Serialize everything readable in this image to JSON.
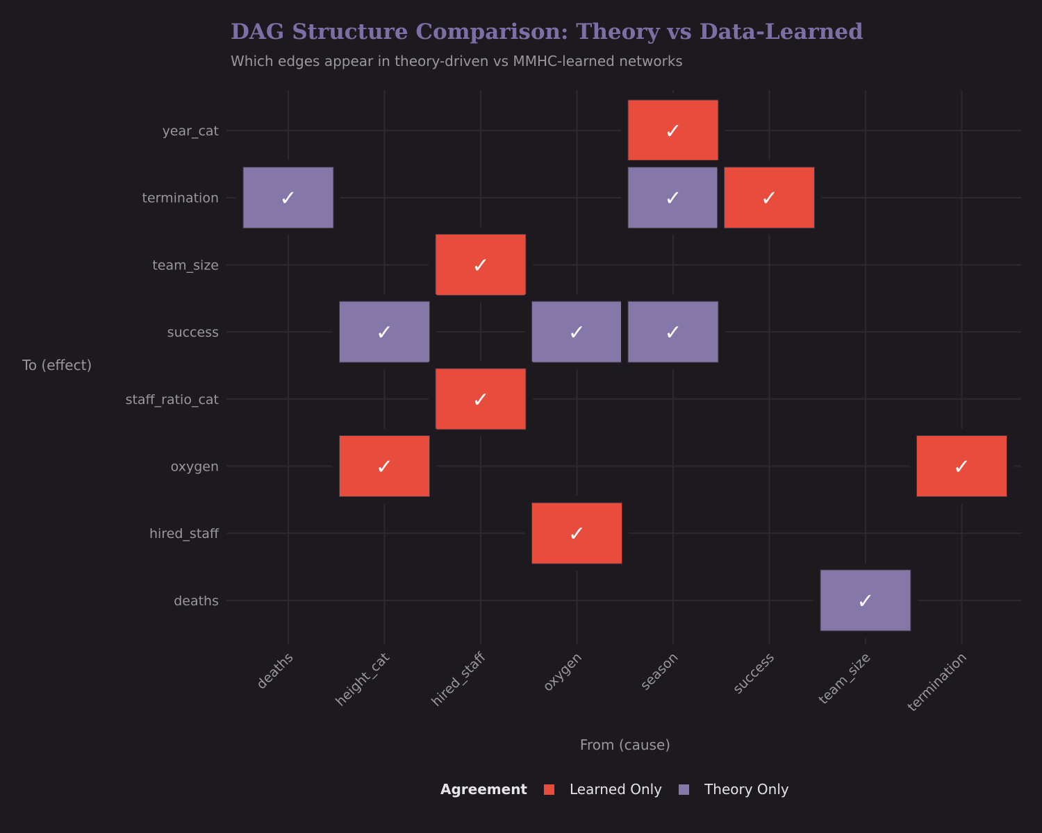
{
  "chart_data": {
    "type": "heatmap",
    "title": "DAG Structure Comparison: Theory vs Data-Learned",
    "subtitle": "Which edges appear in theory-driven vs MMHC-learned networks",
    "xlabel": "From (cause)",
    "ylabel": "To (effect)",
    "x_categories": [
      "deaths",
      "height_cat",
      "hired_staff",
      "oxygen",
      "season",
      "success",
      "team_size",
      "termination"
    ],
    "y_categories": [
      "year_cat",
      "termination",
      "team_size",
      "success",
      "staff_ratio_cat",
      "oxygen",
      "hired_staff",
      "deaths"
    ],
    "cell_label": "✓",
    "legend": {
      "title": "Agreement",
      "placement": "bottom",
      "entries": [
        {
          "name": "Learned Only",
          "color": "#e74c3c"
        },
        {
          "name": "Theory Only",
          "color": "#8677a9"
        }
      ]
    },
    "grid": true,
    "cells": [
      {
        "from": "season",
        "to": "year_cat",
        "agreement": "Learned Only"
      },
      {
        "from": "deaths",
        "to": "termination",
        "agreement": "Theory Only"
      },
      {
        "from": "season",
        "to": "termination",
        "agreement": "Theory Only"
      },
      {
        "from": "success",
        "to": "termination",
        "agreement": "Learned Only"
      },
      {
        "from": "hired_staff",
        "to": "team_size",
        "agreement": "Learned Only"
      },
      {
        "from": "height_cat",
        "to": "success",
        "agreement": "Theory Only"
      },
      {
        "from": "oxygen",
        "to": "success",
        "agreement": "Theory Only"
      },
      {
        "from": "season",
        "to": "success",
        "agreement": "Theory Only"
      },
      {
        "from": "hired_staff",
        "to": "staff_ratio_cat",
        "agreement": "Learned Only"
      },
      {
        "from": "height_cat",
        "to": "oxygen",
        "agreement": "Learned Only"
      },
      {
        "from": "termination",
        "to": "oxygen",
        "agreement": "Learned Only"
      },
      {
        "from": "oxygen",
        "to": "hired_staff",
        "agreement": "Learned Only"
      },
      {
        "from": "team_size",
        "to": "deaths",
        "agreement": "Theory Only"
      }
    ]
  }
}
